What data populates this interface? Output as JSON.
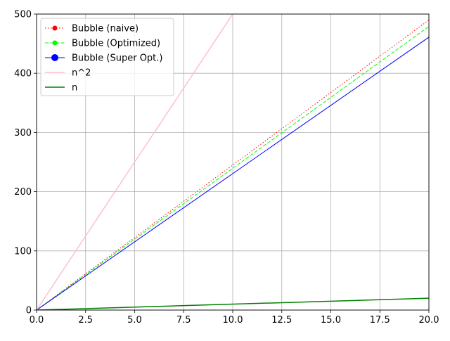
{
  "chart_data": {
    "type": "line",
    "title": "",
    "xlabel": "",
    "ylabel": "",
    "xlim": [
      0,
      20
    ],
    "ylim": [
      0,
      500
    ],
    "x_ticks": [
      "0.0",
      "2.5",
      "5.0",
      "7.5",
      "10.0",
      "12.5",
      "15.0",
      "17.5",
      "20.0"
    ],
    "y_ticks": [
      "0",
      "100",
      "200",
      "300",
      "400",
      "500"
    ],
    "grid": true,
    "legend_position": "top-left",
    "series": [
      {
        "name": "Bubble (naive)",
        "color": "#ff0000",
        "linestyle": "dotted",
        "marker": "circle",
        "x": [
          0,
          20
        ],
        "y": [
          0,
          490
        ]
      },
      {
        "name": "Bubble (Optimized)",
        "color": "#00ff00",
        "linestyle": "dashed",
        "marker": "circle",
        "x": [
          0,
          20
        ],
        "y": [
          0,
          479
        ]
      },
      {
        "name": "Bubble (Super Opt.)",
        "color": "#0000ff",
        "linestyle": "solid",
        "marker": "circle",
        "x": [
          0,
          20
        ],
        "y": [
          0,
          461
        ]
      },
      {
        "name": "n^2",
        "color": "#ffc0cb",
        "linestyle": "solid",
        "marker": "none",
        "x": [
          0,
          1,
          2,
          3,
          4,
          5,
          6,
          7,
          8,
          9,
          10
        ],
        "y": [
          0,
          50,
          100,
          150,
          200,
          250,
          300,
          350,
          400,
          450,
          500
        ]
      },
      {
        "name": "n",
        "color": "#008000",
        "linestyle": "solid",
        "marker": "none",
        "x": [
          0,
          20
        ],
        "y": [
          0,
          20
        ]
      }
    ]
  }
}
